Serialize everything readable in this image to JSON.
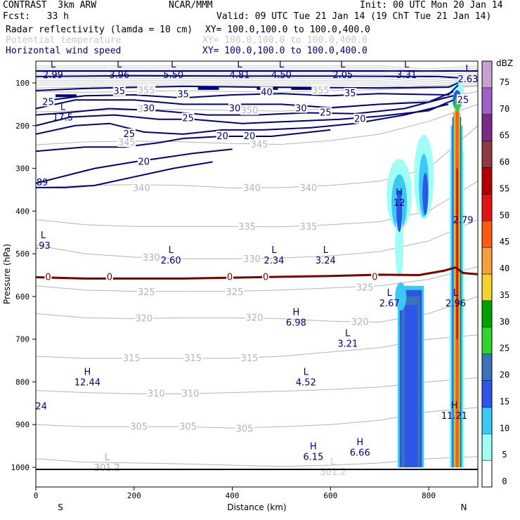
{
  "header": {
    "model": "CONTRAST  3km ARW",
    "center": "NCAR/MMM",
    "init": "Init: 00 UTC Mon 20 Jan 14",
    "fcst": "Fcst:   33 h",
    "valid": "Valid: 09 UTC Tue 21 Jan 14 (19 ChT Tue 21 Jan 14)",
    "fields": [
      {
        "name": "Radar reflectivity (lamda = 10 cm)",
        "xy": "XY= 100.0,100.0 to 100.0,400.0",
        "color": "#000000"
      },
      {
        "name": "Potential temperature",
        "xy": "XY= 100.0,100.0 to 100.0,400.0",
        "color": "#c8c8c8"
      },
      {
        "name": "Horizontal wind speed",
        "xy": "XY= 100.0,100.0 to 100.0,400.0",
        "color": "#000080"
      }
    ]
  },
  "chart_data": {
    "type": "cross-section",
    "xlabel": "Distance (km)",
    "ylabel": "Pressure (hPa)",
    "xlim": [
      0,
      900
    ],
    "ylim": [
      1050,
      55
    ],
    "x_ticks": [
      0,
      200,
      400,
      600,
      800
    ],
    "y_ticks": [
      100,
      200,
      300,
      400,
      500,
      600,
      700,
      800,
      900,
      1000
    ],
    "end_labels": {
      "left": "S",
      "right": "N"
    },
    "colorbar": {
      "unit": "dBZ",
      "levels": [
        0,
        5,
        10,
        15,
        20,
        25,
        30,
        35,
        40,
        45,
        50,
        55,
        60,
        65,
        70,
        75
      ],
      "colors": [
        "#ffffff",
        "#9ffff7",
        "#3cc8f5",
        "#2e56e6",
        "#3a73b8",
        "#2fd42f",
        "#00a000",
        "#f5d22d",
        "#f5a040",
        "#ff5a14",
        "#e51414",
        "#b40000",
        "#8c3c3c",
        "#7a2a88",
        "#a060c8",
        "#c8a0d2"
      ]
    },
    "theta_labels": [
      {
        "t": "355",
        "x": 225,
        "p": 118
      },
      {
        "t": "355",
        "x": 580,
        "p": 118
      },
      {
        "t": "350",
        "x": 225,
        "p": 162
      },
      {
        "t": "350",
        "x": 435,
        "p": 165
      },
      {
        "t": "345",
        "x": 185,
        "p": 240
      },
      {
        "t": "345",
        "x": 455,
        "p": 245
      },
      {
        "t": "340",
        "x": 215,
        "p": 347
      },
      {
        "t": "340",
        "x": 440,
        "p": 347
      },
      {
        "t": "340",
        "x": 555,
        "p": 347
      },
      {
        "t": "335",
        "x": 430,
        "p": 437
      },
      {
        "t": "335",
        "x": 555,
        "p": 437
      },
      {
        "t": "330",
        "x": 235,
        "p": 510
      },
      {
        "t": "330",
        "x": 440,
        "p": 513
      },
      {
        "t": "325",
        "x": 225,
        "p": 590
      },
      {
        "t": "325",
        "x": 405,
        "p": 590
      },
      {
        "t": "325",
        "x": 670,
        "p": 580
      },
      {
        "t": "320",
        "x": 220,
        "p": 652
      },
      {
        "t": "320",
        "x": 445,
        "p": 650
      },
      {
        "t": "320",
        "x": 660,
        "p": 660
      },
      {
        "t": "315",
        "x": 195,
        "p": 745
      },
      {
        "t": "315",
        "x": 320,
        "p": 745
      },
      {
        "t": "315",
        "x": 435,
        "p": 745
      },
      {
        "t": "310",
        "x": 245,
        "p": 828
      },
      {
        "t": "310",
        "x": 315,
        "p": 828
      },
      {
        "t": "305",
        "x": 210,
        "p": 905
      },
      {
        "t": "305",
        "x": 310,
        "p": 905
      },
      {
        "t": "305",
        "x": 425,
        "p": 910
      }
    ],
    "wind_labels": [
      {
        "t": "35",
        "x": 170,
        "p": 120
      },
      {
        "t": "35",
        "x": 300,
        "p": 127
      },
      {
        "t": "40",
        "x": 470,
        "p": 122
      },
      {
        "t": "35",
        "x": 640,
        "p": 125
      },
      {
        "t": "25",
        "x": 25,
        "p": 145
      },
      {
        "t": "30",
        "x": 230,
        "p": 160
      },
      {
        "t": "30",
        "x": 405,
        "p": 160
      },
      {
        "t": "30",
        "x": 540,
        "p": 160
      },
      {
        "t": "25",
        "x": 590,
        "p": 170
      },
      {
        "t": "25",
        "x": 870,
        "p": 140
      },
      {
        "t": "25",
        "x": 310,
        "p": 183
      },
      {
        "t": "20",
        "x": 660,
        "p": 185
      },
      {
        "t": "25",
        "x": 190,
        "p": 220
      },
      {
        "t": "20",
        "x": 380,
        "p": 225
      },
      {
        "t": "20",
        "x": 435,
        "p": 225
      },
      {
        "t": "20",
        "x": 220,
        "p": 285
      }
    ],
    "extrema": [
      {
        "type": "L",
        "value": "2.99",
        "x": 35,
        "p": 70,
        "color": "#000080"
      },
      {
        "type": "L",
        "value": "3.96",
        "x": 170,
        "p": 70,
        "color": "#000080"
      },
      {
        "type": "L",
        "value": "5.50",
        "x": 280,
        "p": 70,
        "color": "#000080"
      },
      {
        "type": "L",
        "value": "4.81",
        "x": 415,
        "p": 70,
        "color": "#000080"
      },
      {
        "type": "L",
        "value": "4.50",
        "x": 500,
        "p": 70,
        "color": "#000080"
      },
      {
        "type": "L",
        "value": "2.05",
        "x": 625,
        "p": 70,
        "color": "#000080"
      },
      {
        "type": "L",
        "value": "3.31",
        "x": 755,
        "p": 70,
        "color": "#000080"
      },
      {
        "type": "L",
        "value": "2.63",
        "x": 880,
        "p": 80,
        "color": "#000080"
      },
      {
        "type": "L",
        "value": "17.5",
        "x": 55,
        "p": 170,
        "color": "#000080"
      },
      {
        "type": "",
        "value": ".89",
        "x": 10,
        "p": 322,
        "color": "#000080"
      },
      {
        "type": "H",
        "value": "12",
        "x": 740,
        "p": 370,
        "color": "#000080"
      },
      {
        "type": "",
        "value": "2.79",
        "x": 870,
        "p": 410,
        "color": "#000080"
      },
      {
        "type": "L",
        "value": ".93",
        "x": 15,
        "p": 470,
        "color": "#000080"
      },
      {
        "type": "L",
        "value": "2.60",
        "x": 275,
        "p": 505,
        "color": "#000080"
      },
      {
        "type": "L",
        "value": "2.34",
        "x": 485,
        "p": 505,
        "color": "#000080"
      },
      {
        "type": "L",
        "value": "3.24",
        "x": 590,
        "p": 505,
        "color": "#000080"
      },
      {
        "type": "L",
        "value": "2.67",
        "x": 720,
        "p": 605,
        "color": "#000080"
      },
      {
        "type": "L",
        "value": "2.96",
        "x": 855,
        "p": 605,
        "color": "#000080"
      },
      {
        "type": "H",
        "value": "6.98",
        "x": 530,
        "p": 650,
        "color": "#000080"
      },
      {
        "type": "L",
        "value": "3.21",
        "x": 635,
        "p": 700,
        "color": "#000080"
      },
      {
        "type": "H",
        "value": "12.44",
        "x": 105,
        "p": 790,
        "color": "#000080"
      },
      {
        "type": "L",
        "value": "4.52",
        "x": 550,
        "p": 790,
        "color": "#000080"
      },
      {
        "type": "",
        "value": ".24",
        "x": 8,
        "p": 846,
        "color": "#000080"
      },
      {
        "type": "H",
        "value": "11.21",
        "x": 852,
        "p": 868,
        "color": "#000080"
      },
      {
        "type": "H",
        "value": "6.15",
        "x": 565,
        "p": 965,
        "color": "#000080"
      },
      {
        "type": "H",
        "value": "6.66",
        "x": 660,
        "p": 955,
        "color": "#000080"
      },
      {
        "type": "L",
        "value": "301.2",
        "x": 145,
        "p": 990,
        "color": "#aaaaaa"
      },
      {
        "type": "L",
        "value": "301.2",
        "x": 605,
        "p": 1000,
        "color": "#c8c8c8"
      }
    ],
    "zero_labels": [
      {
        "t": "0",
        "x": 25
      },
      {
        "t": "0",
        "x": 150
      },
      {
        "t": "0",
        "x": 395
      },
      {
        "t": "0",
        "x": 468
      },
      {
        "t": "0",
        "x": 690
      }
    ]
  }
}
